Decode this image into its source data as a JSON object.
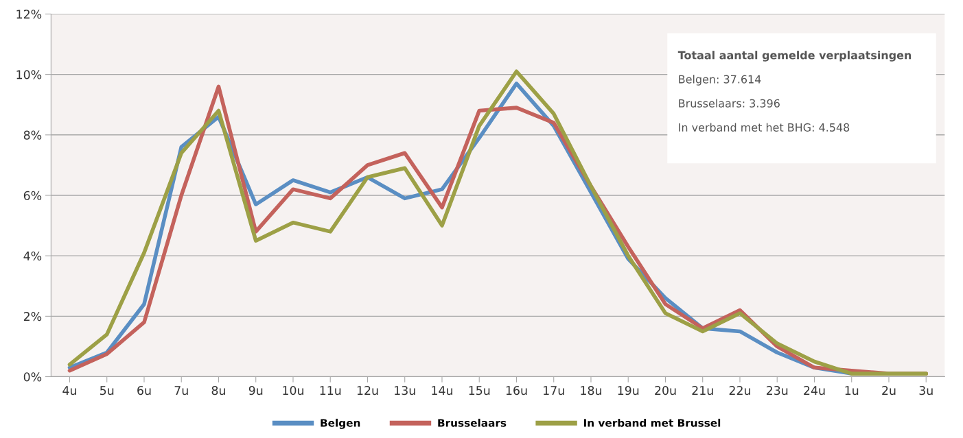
{
  "chart_data": {
    "type": "line",
    "categories": [
      "4u",
      "5u",
      "6u",
      "7u",
      "8u",
      "9u",
      "10u",
      "11u",
      "12u",
      "13u",
      "14u",
      "15u",
      "16u",
      "17u",
      "18u",
      "19u",
      "20u",
      "21u",
      "22u",
      "23u",
      "24u",
      "1u",
      "2u",
      "3u"
    ],
    "series": [
      {
        "name": "Belgen",
        "color": "#5a8ec3",
        "values": [
          0.3,
          0.8,
          2.4,
          7.6,
          8.6,
          5.7,
          6.5,
          6.1,
          6.6,
          5.9,
          6.2,
          7.9,
          9.7,
          8.3,
          6.1,
          3.9,
          2.6,
          1.6,
          1.5,
          0.8,
          0.3,
          0.1,
          null,
          null
        ]
      },
      {
        "name": "Brusselaars",
        "color": "#c4625c",
        "values": [
          0.2,
          0.75,
          1.8,
          6.0,
          9.6,
          4.8,
          6.2,
          5.9,
          7.0,
          7.4,
          5.6,
          8.8,
          8.9,
          8.4,
          6.3,
          4.3,
          2.4,
          1.6,
          2.2,
          1.0,
          0.3,
          0.2,
          0.1,
          0.1
        ]
      },
      {
        "name": "In verband met Brussel",
        "color": "#9da046",
        "values": [
          0.4,
          1.4,
          4.1,
          7.4,
          8.8,
          4.5,
          5.1,
          4.8,
          6.6,
          6.9,
          5.0,
          8.3,
          10.1,
          8.7,
          6.3,
          4.0,
          2.1,
          1.5,
          2.1,
          1.1,
          0.5,
          0.1,
          0.1,
          0.1
        ]
      }
    ],
    "ylim": [
      0,
      12
    ],
    "yticks": [
      {
        "value": 0,
        "label": "0%"
      },
      {
        "value": 2,
        "label": "2%"
      },
      {
        "value": 4,
        "label": "4%"
      },
      {
        "value": 6,
        "label": "6%"
      },
      {
        "value": 8,
        "label": "8%"
      },
      {
        "value": 10,
        "label": "10%"
      },
      {
        "value": 12,
        "label": "12%"
      }
    ],
    "grid": "y",
    "legend": "bottom",
    "marker": "none",
    "line_style": "solid",
    "annotations": [
      "Totaal aantal gemelde verplaatsingen",
      "Belgen: 37.614",
      "Brusselaars: 3.396",
      "In verband met het BHG: 4.548"
    ]
  }
}
